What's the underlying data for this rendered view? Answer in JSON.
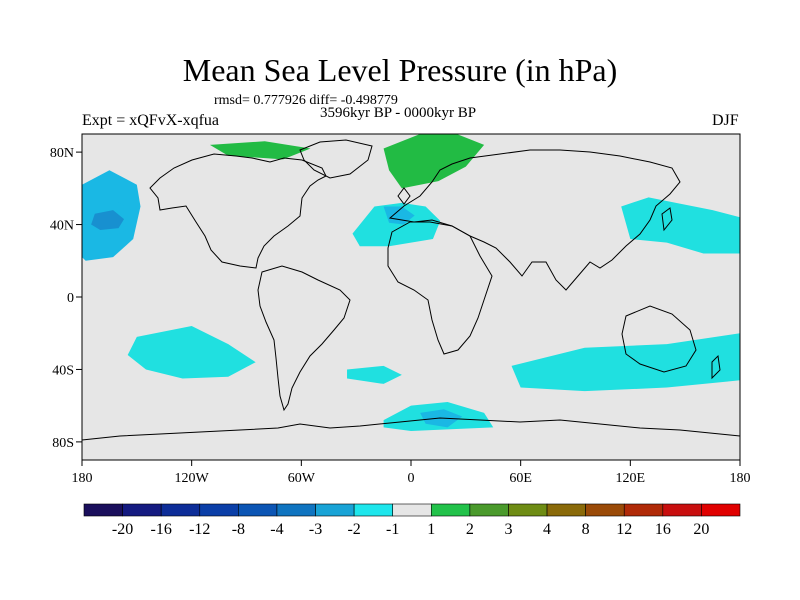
{
  "title": "Mean Sea Level Pressure (in hPa)",
  "stats": "rmsd= 0.777926 diff= -0.498779",
  "period": "3596kyr BP - 0000kyr BP",
  "experiment": "Expt = xQFvX-xqfua",
  "season": "DJF",
  "axes": {
    "x_ticks": [
      "180",
      "120W",
      "60W",
      "0",
      "60E",
      "120E",
      "180"
    ],
    "y_ticks": [
      "80N",
      "40N",
      "0",
      "40S",
      "80S"
    ]
  },
  "colorbar": {
    "labels": [
      "-20",
      "-16",
      "-12",
      "-8",
      "-4",
      "-3",
      "-2",
      "-1",
      "1",
      "2",
      "3",
      "4",
      "8",
      "12",
      "16",
      "20"
    ],
    "colors": [
      "#1a0f5c",
      "#141a80",
      "#0d2d98",
      "#0b3fa8",
      "#0c55b4",
      "#0f74c0",
      "#18a3d6",
      "#1ee6ec",
      "#e6e6e6",
      "#22c24a",
      "#4a9a2c",
      "#6e8c14",
      "#8a6a0a",
      "#9a4a08",
      "#b02a08",
      "#c80e0e",
      "#e00000"
    ]
  },
  "colors": {
    "background": "#e6e6e6",
    "neg1": "#20e0e0",
    "neg2": "#1ab8e4",
    "neg3": "#1890d0",
    "pos1": "#22bb44",
    "coast": "#000000"
  },
  "regions": [
    {
      "name": "north-pacific-low",
      "level": "-3",
      "lonlat": [
        [
          -180,
          62
        ],
        [
          -165,
          70
        ],
        [
          -150,
          62
        ],
        [
          -148,
          50
        ],
        [
          -152,
          32
        ],
        [
          -163,
          22
        ],
        [
          -178,
          20
        ],
        [
          -180,
          22
        ]
      ]
    },
    {
      "name": "north-pacific-low-mid",
      "level": "-4",
      "lonlat": [
        [
          -178,
          52
        ],
        [
          -163,
          54
        ],
        [
          -151,
          47
        ],
        [
          -154,
          38
        ],
        [
          -165,
          32
        ],
        [
          -178,
          34
        ]
      ]
    },
    {
      "name": "north-pacific-low-core",
      "level": "-8",
      "lonlat": [
        [
          -173,
          46
        ],
        [
          -163,
          48
        ],
        [
          -157,
          43
        ],
        [
          -160,
          38
        ],
        [
          -170,
          37
        ],
        [
          -175,
          40
        ]
      ]
    },
    {
      "name": "north-atlantic-low",
      "level": "-2",
      "lonlat": [
        [
          -32,
          35
        ],
        [
          -20,
          50
        ],
        [
          -5,
          52
        ],
        [
          8,
          50
        ],
        [
          16,
          42
        ],
        [
          12,
          32
        ],
        [
          -12,
          28
        ],
        [
          -28,
          28
        ]
      ]
    },
    {
      "name": "north-atlantic-low-inner",
      "level": "-3",
      "lonlat": [
        [
          -15,
          50
        ],
        [
          -5,
          50
        ],
        [
          2,
          45
        ],
        [
          -4,
          40
        ],
        [
          -12,
          41
        ]
      ]
    },
    {
      "name": "east-asia-pacific-low",
      "level": "-2",
      "lonlat": [
        [
          115,
          50
        ],
        [
          130,
          55
        ],
        [
          145,
          52
        ],
        [
          165,
          48
        ],
        [
          180,
          44
        ],
        [
          180,
          24
        ],
        [
          160,
          24
        ],
        [
          140,
          30
        ],
        [
          120,
          32
        ]
      ]
    },
    {
      "name": "south-pacific-low",
      "level": "-2",
      "lonlat": [
        [
          -150,
          -22
        ],
        [
          -120,
          -16
        ],
        [
          -100,
          -26
        ],
        [
          -85,
          -36
        ],
        [
          -100,
          -44
        ],
        [
          -125,
          -45
        ],
        [
          -145,
          -40
        ],
        [
          -155,
          -32
        ]
      ]
    },
    {
      "name": "south-indian-low",
      "level": "-2",
      "lonlat": [
        [
          55,
          -38
        ],
        [
          95,
          -28
        ],
        [
          140,
          -26
        ],
        [
          180,
          -20
        ],
        [
          180,
          -46
        ],
        [
          140,
          -50
        ],
        [
          95,
          -52
        ],
        [
          60,
          -50
        ]
      ]
    },
    {
      "name": "south-atlantic-patch",
      "level": "-2",
      "lonlat": [
        [
          -35,
          -40
        ],
        [
          -15,
          -38
        ],
        [
          -5,
          -43
        ],
        [
          -15,
          -48
        ],
        [
          -35,
          -45
        ]
      ]
    },
    {
      "name": "antarctic-low",
      "level": "-2",
      "lonlat": [
        [
          -15,
          -68
        ],
        [
          0,
          -60
        ],
        [
          20,
          -58
        ],
        [
          40,
          -64
        ],
        [
          45,
          -72
        ],
        [
          0,
          -74
        ],
        [
          -15,
          -72
        ]
      ]
    },
    {
      "name": "antarctic-low-core",
      "level": "-4",
      "lonlat": [
        [
          5,
          -64
        ],
        [
          18,
          -62
        ],
        [
          28,
          -66
        ],
        [
          20,
          -72
        ],
        [
          8,
          -70
        ]
      ]
    },
    {
      "name": "greenland-high",
      "level": "1",
      "lonlat": [
        [
          -15,
          82
        ],
        [
          5,
          90
        ],
        [
          25,
          90
        ],
        [
          40,
          84
        ],
        [
          30,
          72
        ],
        [
          15,
          64
        ],
        [
          -5,
          60
        ],
        [
          -12,
          70
        ]
      ]
    },
    {
      "name": "arctic-canada-high",
      "level": "1",
      "lonlat": [
        [
          -110,
          84
        ],
        [
          -80,
          86
        ],
        [
          -55,
          82
        ],
        [
          -70,
          76
        ],
        [
          -100,
          78
        ]
      ]
    }
  ]
}
